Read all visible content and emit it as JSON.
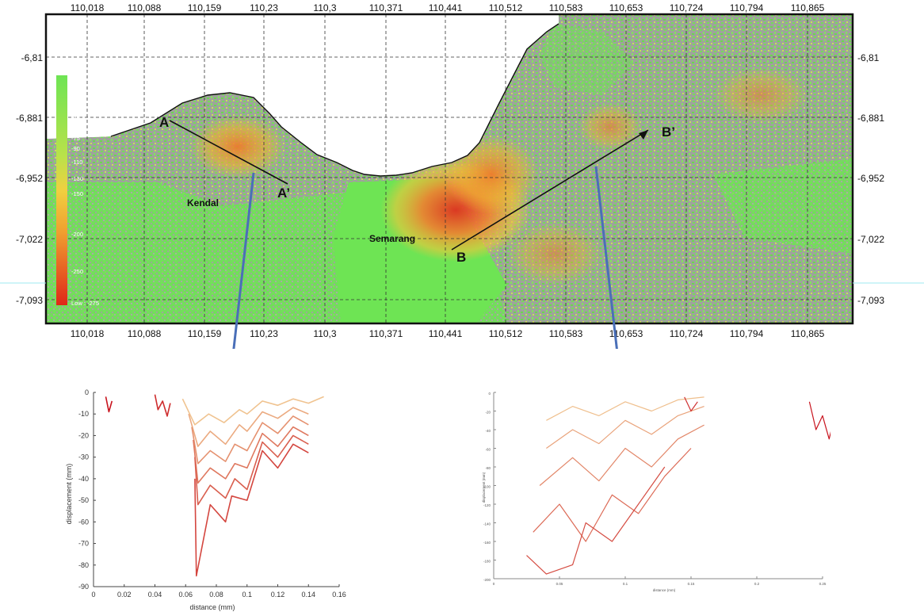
{
  "map": {
    "longitude_ticks": [
      "110,018",
      "110,088",
      "110,159",
      "110,23",
      "110,3",
      "110,371",
      "110,441",
      "110,512",
      "110,583",
      "110,653",
      "110,724",
      "110,794",
      "110,865"
    ],
    "latitude_ticks": [
      "-6,81",
      "-6,881",
      "-6,952",
      "-7,022",
      "-7,093"
    ],
    "places": {
      "kendal": "Kendal",
      "semarang": "Semarang"
    },
    "profile_points": {
      "a": "A",
      "a_prime": "A’",
      "b": "B",
      "b_prime": "B’"
    },
    "legend": {
      "high": "High : 20",
      "low": "Low : -275",
      "values": [
        "0",
        "-10",
        "-20",
        "-30",
        "-40",
        "-50",
        "-60",
        "-75",
        "-90",
        "-110",
        "-130",
        "-150",
        "-200",
        "-250"
      ]
    },
    "colors": {
      "land_grey": "#a7a7a7",
      "stable_green": "#6ee454",
      "subsidence_orange": "#f08030",
      "subsidence_red": "#e03020",
      "arrow_blue": "#4a6fb8"
    }
  },
  "chart_data": [
    {
      "type": "line",
      "title": "",
      "xlabel": "distance (mm)",
      "ylabel": "displacement (mm)",
      "xlim": [
        0,
        0.16
      ],
      "ylim": [
        -90,
        0
      ],
      "x_ticks": [
        "0",
        "0.02",
        "0.04",
        "0.06",
        "0.08",
        "0.1",
        "0.12",
        "0.14",
        "0.16"
      ],
      "y_ticks": [
        "0",
        "-10",
        "-20",
        "-30",
        "-40",
        "-50",
        "-60",
        "-70",
        "-80",
        "-90"
      ],
      "series_color_range": [
        "#f6dca0",
        "#c8141e"
      ],
      "series": [
        {
          "x": [
            0.058,
            0.066,
            0.075,
            0.085,
            0.095,
            0.1,
            0.11,
            0.12,
            0.13,
            0.14,
            0.15
          ],
          "y": [
            -3,
            -15,
            -10,
            -14,
            -8,
            -10,
            -4,
            -6,
            -3,
            -5,
            -2
          ]
        },
        {
          "x": [
            0.062,
            0.068,
            0.076,
            0.086,
            0.095,
            0.1,
            0.11,
            0.12,
            0.13,
            0.14
          ],
          "y": [
            -10,
            -25,
            -18,
            -24,
            -15,
            -18,
            -9,
            -12,
            -7,
            -10
          ]
        },
        {
          "x": [
            0.064,
            0.068,
            0.076,
            0.086,
            0.092,
            0.1,
            0.11,
            0.12,
            0.13,
            0.14
          ],
          "y": [
            -16,
            -33,
            -27,
            -32,
            -24,
            -27,
            -14,
            -19,
            -11,
            -15
          ]
        },
        {
          "x": [
            0.065,
            0.068,
            0.076,
            0.086,
            0.092,
            0.1,
            0.11,
            0.12,
            0.13,
            0.14
          ],
          "y": [
            -22,
            -42,
            -35,
            -40,
            -33,
            -35,
            -19,
            -25,
            -16,
            -20
          ]
        },
        {
          "x": [
            0.066,
            0.068,
            0.076,
            0.086,
            0.092,
            0.1,
            0.11,
            0.12,
            0.13,
            0.14
          ],
          "y": [
            -30,
            -52,
            -43,
            -49,
            -40,
            -45,
            -23,
            -30,
            -20,
            -24
          ]
        },
        {
          "x": [
            0.066,
            0.067,
            0.076,
            0.086,
            0.09,
            0.1,
            0.11,
            0.12,
            0.13,
            0.14
          ],
          "y": [
            -40,
            -85,
            -52,
            -60,
            -48,
            -50,
            -27,
            -35,
            -24,
            -28
          ]
        },
        {
          "x": [
            0.04,
            0.042,
            0.045,
            0.048,
            0.05
          ],
          "y": [
            -1,
            -8,
            -4,
            -11,
            -5
          ]
        },
        {
          "x": [
            0.008,
            0.01,
            0.012
          ],
          "y": [
            -2,
            -9,
            -4
          ]
        }
      ]
    },
    {
      "type": "line",
      "title": "",
      "xlabel": "distance (mm)",
      "ylabel": "displacement (mm)",
      "x_ticks": [
        "0",
        "0.05",
        "0.1",
        "0.15",
        "0.2",
        "0.25"
      ],
      "y_ticks": [
        "0",
        "-20",
        "-40",
        "-60",
        "-80",
        "-100",
        "-120",
        "-140",
        "-160",
        "-180",
        "-200"
      ],
      "xlim": [
        0,
        0.25
      ],
      "ylim": [
        -200,
        0
      ],
      "series_color_range": [
        "#f6dca0",
        "#c8141e"
      ],
      "series": [
        {
          "x": [
            0.04,
            0.06,
            0.08,
            0.1,
            0.12,
            0.14,
            0.16
          ],
          "y": [
            -30,
            -15,
            -25,
            -10,
            -20,
            -8,
            -5
          ]
        },
        {
          "x": [
            0.04,
            0.06,
            0.08,
            0.1,
            0.12,
            0.14,
            0.16
          ],
          "y": [
            -60,
            -40,
            -55,
            -30,
            -45,
            -25,
            -15
          ]
        },
        {
          "x": [
            0.035,
            0.06,
            0.08,
            0.1,
            0.12,
            0.14,
            0.16
          ],
          "y": [
            -100,
            -70,
            -95,
            -60,
            -80,
            -50,
            -35
          ]
        },
        {
          "x": [
            0.03,
            0.05,
            0.07,
            0.09,
            0.11,
            0.13,
            0.15
          ],
          "y": [
            -150,
            -120,
            -160,
            -110,
            -130,
            -90,
            -60
          ]
        },
        {
          "x": [
            0.025,
            0.04,
            0.06,
            0.07,
            0.09,
            0.11,
            0.13
          ],
          "y": [
            -175,
            -195,
            -185,
            -140,
            -160,
            -120,
            -80
          ]
        },
        {
          "x": [
            0.145,
            0.15,
            0.155
          ],
          "y": [
            -5,
            -20,
            -10
          ]
        },
        {
          "x": [
            0.24,
            0.245,
            0.25,
            0.255,
            0.26
          ],
          "y": [
            -10,
            -40,
            -25,
            -50,
            -20
          ]
        }
      ]
    }
  ]
}
